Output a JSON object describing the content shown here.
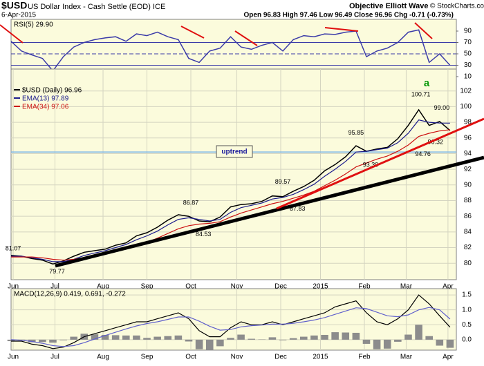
{
  "header": {
    "symbol": "$USD",
    "name": "US Dollar Index - Cash Settle (EOD) ICE",
    "date": "6-Apr-2015",
    "source": "Objective Elliott Wave",
    "copyright": "© StockCharts.com",
    "quote": "Open 96.83  High 97.46  Low 96.49  Close 96.96  Chg -0.71 (-0.73%)",
    "trend_label": "uptrend",
    "wave_label": "a"
  },
  "chart_data": [
    {
      "type": "line",
      "title": "RSI(5) 29.90",
      "x": [
        0,
        5,
        10,
        15,
        20,
        25,
        30,
        35,
        40,
        45,
        50,
        55,
        60,
        65,
        70,
        75,
        80,
        85,
        90,
        95,
        100,
        105,
        110,
        115,
        120,
        125,
        130,
        135,
        140,
        145,
        150,
        155,
        160,
        165,
        170,
        175,
        180,
        185,
        190,
        195,
        200,
        205,
        210
      ],
      "series": [
        {
          "color": "#3a3aa8",
          "values": [
            72,
            55,
            48,
            42,
            20,
            45,
            62,
            70,
            75,
            78,
            80,
            72,
            85,
            82,
            88,
            80,
            75,
            42,
            35,
            55,
            60,
            80,
            62,
            58,
            65,
            70,
            55,
            75,
            82,
            80,
            85,
            84,
            88,
            90,
            45,
            55,
            60,
            70,
            88,
            92,
            35,
            50,
            29.9
          ]
        }
      ],
      "xlim": [
        0,
        213
      ],
      "ylim": [
        23.3,
        110.6
      ],
      "yticks": [
        10,
        30,
        50,
        70,
        90
      ],
      "hlines": [
        {
          "value": 70,
          "style": "solid"
        },
        {
          "value": 50,
          "style": "dashed"
        },
        {
          "value": 30,
          "style": "solid"
        }
      ],
      "grid": false
    },
    {
      "type": "line",
      "x": [
        0,
        5,
        10,
        15,
        20,
        25,
        30,
        35,
        40,
        45,
        50,
        55,
        60,
        65,
        70,
        75,
        80,
        85,
        90,
        95,
        100,
        105,
        110,
        115,
        120,
        125,
        130,
        135,
        140,
        145,
        150,
        155,
        160,
        165,
        170,
        175,
        180,
        185,
        190,
        195,
        200,
        205,
        210
      ],
      "series": [
        {
          "name": "$USD (Daily) 96.96",
          "color": "#000000",
          "values": [
            81.0,
            80.9,
            80.6,
            80.4,
            79.9,
            80.3,
            80.9,
            81.4,
            81.6,
            81.8,
            82.3,
            82.6,
            83.5,
            83.9,
            84.6,
            85.5,
            86.2,
            86.0,
            85.4,
            85.3,
            85.9,
            87.2,
            87.5,
            87.6,
            87.9,
            88.6,
            88.5,
            89.2,
            89.8,
            90.6,
            91.8,
            92.6,
            93.6,
            95.0,
            94.3,
            94.6,
            94.8,
            95.9,
            97.6,
            99.6,
            97.6,
            98.1,
            96.96
          ]
        },
        {
          "name": "EMA(13) 97.89",
          "color": "#1a1a8c",
          "values": [
            80.9,
            80.9,
            80.7,
            80.5,
            80.2,
            80.2,
            80.5,
            81.0,
            81.3,
            81.6,
            82.0,
            82.4,
            83.0,
            83.5,
            84.1,
            84.9,
            85.6,
            85.8,
            85.6,
            85.4,
            85.6,
            86.5,
            87.1,
            87.4,
            87.7,
            88.2,
            88.4,
            88.8,
            89.4,
            90.1,
            91.1,
            92.0,
            93.0,
            94.2,
            94.3,
            94.5,
            94.7,
            95.4,
            96.6,
            98.3,
            98.0,
            97.9,
            97.89
          ]
        },
        {
          "name": "EMA(34) 97.06",
          "color": "#cc1111",
          "values": [
            80.8,
            80.8,
            80.8,
            80.7,
            80.5,
            80.4,
            80.5,
            80.7,
            81.0,
            81.2,
            81.5,
            81.8,
            82.3,
            82.7,
            83.2,
            83.8,
            84.4,
            84.8,
            85.0,
            85.1,
            85.3,
            85.9,
            86.4,
            86.8,
            87.2,
            87.6,
            87.9,
            88.3,
            88.7,
            89.2,
            89.9,
            90.6,
            91.4,
            92.3,
            92.8,
            93.3,
            93.7,
            94.3,
            95.1,
            96.2,
            96.6,
            96.9,
            97.06
          ]
        }
      ],
      "xlim": [
        0,
        213
      ],
      "ylim": [
        77.9,
        104.8
      ],
      "yticks": [
        80,
        82,
        84,
        86,
        88,
        90,
        92,
        94,
        96,
        98,
        100,
        102
      ],
      "xticks": [
        {
          "value": 1,
          "label": "Jun"
        },
        {
          "value": 21,
          "label": "Jul"
        },
        {
          "value": 44,
          "label": "Aug"
        },
        {
          "value": 65,
          "label": "Sep"
        },
        {
          "value": 86,
          "label": "Oct"
        },
        {
          "value": 108,
          "label": "Nov"
        },
        {
          "value": 129,
          "label": "Dec"
        },
        {
          "value": 148,
          "label": "2015"
        },
        {
          "value": 169,
          "label": "Feb"
        },
        {
          "value": 189,
          "label": "Mar"
        },
        {
          "value": 209,
          "label": "Apr"
        }
      ],
      "reference_line": 94.2,
      "annotations": [
        {
          "x": 1,
          "value": 81.07,
          "label": "81.07",
          "position": "above"
        },
        {
          "x": 22,
          "value": 79.77,
          "label": "79.77",
          "position": "below"
        },
        {
          "x": 86,
          "value": 86.87,
          "label": "86.87",
          "position": "above"
        },
        {
          "x": 92,
          "value": 84.53,
          "label": "84.53",
          "position": "below"
        },
        {
          "x": 130,
          "value": 89.57,
          "label": "89.57",
          "position": "above"
        },
        {
          "x": 137,
          "value": 87.83,
          "label": "87.83",
          "position": "below"
        },
        {
          "x": 165,
          "value": 95.85,
          "label": "95.85",
          "position": "above"
        },
        {
          "x": 172,
          "value": 93.39,
          "label": "93.39",
          "position": "below"
        },
        {
          "x": 196,
          "value": 100.71,
          "label": "100.71",
          "position": "above"
        },
        {
          "x": 206,
          "value": 99.0,
          "label": "99.00",
          "position": "above"
        },
        {
          "x": 203,
          "value": 96.32,
          "label": "96.32",
          "position": "below"
        },
        {
          "x": 197,
          "value": 94.76,
          "label": "94.76",
          "position": "below"
        }
      ],
      "grid": true
    },
    {
      "type": "line",
      "title": "MACD(12,26,9) 0.419, 0.691, -0.272",
      "x": [
        0,
        5,
        10,
        15,
        20,
        25,
        30,
        35,
        40,
        45,
        50,
        55,
        60,
        65,
        70,
        75,
        80,
        85,
        90,
        95,
        100,
        105,
        110,
        115,
        120,
        125,
        130,
        135,
        140,
        145,
        150,
        155,
        160,
        165,
        170,
        175,
        180,
        185,
        190,
        195,
        200,
        205,
        210
      ],
      "series": [
        {
          "style": "bar",
          "color": "#8c8c8c",
          "values": [
            -0.05,
            -0.03,
            -0.09,
            -0.08,
            -0.1,
            -0.02,
            0.1,
            0.2,
            0.18,
            0.16,
            0.15,
            0.14,
            0.14,
            0.06,
            0.1,
            0.12,
            0.14,
            -0.06,
            -0.32,
            -0.35,
            -0.22,
            0.06,
            0.17,
            0.03,
            0.01,
            0.08,
            -0.02,
            0.05,
            0.1,
            0.14,
            0.16,
            0.25,
            0.24,
            0.23,
            -0.14,
            -0.32,
            -0.3,
            -0.07,
            0.17,
            0.5,
            0.12,
            -0.2,
            -0.272
          ]
        },
        {
          "style": "line",
          "color": "#000000",
          "values": [
            -0.05,
            -0.05,
            -0.15,
            -0.2,
            -0.3,
            -0.25,
            -0.1,
            0.1,
            0.2,
            0.3,
            0.4,
            0.5,
            0.6,
            0.6,
            0.7,
            0.8,
            0.9,
            0.7,
            0.3,
            0.1,
            0.1,
            0.4,
            0.6,
            0.5,
            0.5,
            0.6,
            0.5,
            0.6,
            0.7,
            0.8,
            0.9,
            1.1,
            1.2,
            1.3,
            0.9,
            0.6,
            0.5,
            0.7,
            1.0,
            1.5,
            1.2,
            0.8,
            0.419
          ]
        },
        {
          "style": "line",
          "color": "#6060cc",
          "values": [
            0,
            -0.02,
            -0.06,
            -0.12,
            -0.2,
            -0.23,
            -0.2,
            -0.1,
            0.02,
            0.14,
            0.25,
            0.36,
            0.46,
            0.54,
            0.6,
            0.68,
            0.76,
            0.76,
            0.62,
            0.45,
            0.32,
            0.34,
            0.43,
            0.47,
            0.49,
            0.52,
            0.52,
            0.55,
            0.6,
            0.66,
            0.74,
            0.85,
            0.96,
            1.07,
            1.04,
            0.92,
            0.8,
            0.77,
            0.83,
            1.0,
            1.08,
            1.0,
            0.691
          ]
        }
      ],
      "xlim": [
        0,
        213
      ],
      "ylim": [
        -0.35,
        1.71
      ],
      "yticks": [
        {
          "value": 0,
          "label": "0.0"
        },
        0.5,
        {
          "value": 1,
          "label": "1.0"
        },
        1.5
      ],
      "xticks": [
        {
          "value": 1,
          "label": "Jun"
        },
        {
          "value": 21,
          "label": "Jul"
        },
        {
          "value": 44,
          "label": "Aug"
        },
        {
          "value": 65,
          "label": "Sep"
        },
        {
          "value": 86,
          "label": "Oct"
        },
        {
          "value": 108,
          "label": "Nov"
        },
        {
          "value": 129,
          "label": "Dec"
        },
        {
          "value": 148,
          "label": "2015"
        },
        {
          "value": 169,
          "label": "Feb"
        },
        {
          "value": 189,
          "label": "Mar"
        },
        {
          "value": 209,
          "label": "Apr"
        }
      ],
      "grid": true
    }
  ]
}
